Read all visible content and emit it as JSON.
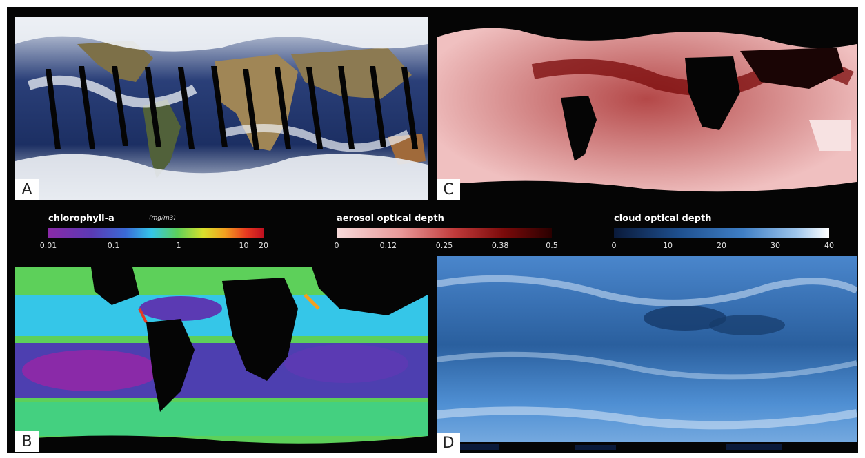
{
  "panels": {
    "a": {
      "label": "A"
    },
    "b": {
      "label": "B"
    },
    "c": {
      "label": "C"
    },
    "d": {
      "label": "D"
    }
  },
  "legends": {
    "chlorophyll": {
      "title": "chlorophyll-a",
      "unit": "(mg/m3)",
      "ticks": [
        "0.01",
        "0.1",
        "1",
        "10",
        "20"
      ],
      "tick_positions": [
        0.01,
        0.1,
        1,
        10,
        20
      ],
      "range": [
        0.01,
        20
      ],
      "scale": "log"
    },
    "aerosol": {
      "title": "aerosol optical depth",
      "ticks": [
        "0",
        "0.12",
        "0.25",
        "0.38",
        "0.5"
      ],
      "tick_positions": [
        0,
        0.12,
        0.25,
        0.38,
        0.5
      ],
      "range": [
        0,
        0.5
      ],
      "scale": "linear"
    },
    "cloud": {
      "title": "cloud optical depth",
      "ticks": [
        "0",
        "10",
        "20",
        "30",
        "40"
      ],
      "tick_positions": [
        0,
        10,
        20,
        30,
        40
      ],
      "range": [
        0,
        40
      ],
      "scale": "linear"
    }
  },
  "colors": {
    "background": "#050505",
    "label_box": "#ffffff",
    "ocean_truecolor": "#1c2f63",
    "land_truecolor": "#8c7a52",
    "cloud_white": "#e9edf2",
    "aerosol_base": "#e7a7a7",
    "aerosol_high": "#7a0a0a",
    "cloud_depth_base": "#3f7fc6",
    "land_mask": "#000000"
  }
}
